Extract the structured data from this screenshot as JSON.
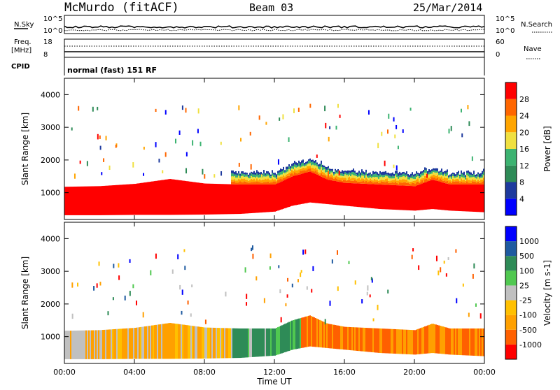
{
  "header": {
    "station": "McMurdo (fitACF)",
    "beam": "Beam 03",
    "date": "25/Mar/2014"
  },
  "strip_labels": {
    "nsky": "N.Sky",
    "nsky_top": "10^5",
    "nsky_bottom": "10^0",
    "nsearch": "N.Search",
    "nsearch_top": "10^5",
    "nsearch_bottom": "10^0",
    "freq_line1": "Freq.",
    "freq_line2": "[MHz]",
    "freq_top": "18",
    "freq_bottom": "8",
    "nave": "Nave",
    "nave_top": "60",
    "nave_bottom": "0",
    "cpid": "CPID",
    "cpid_value": "normal (fast) 151 RF"
  },
  "colors": {
    "power": [
      "#0000ff",
      "#1e3a9e",
      "#2e8b57",
      "#3cb371",
      "#f0e040",
      "#ffa500",
      "#ff6600",
      "#ff0000"
    ],
    "velocity": [
      "#ff0000",
      "#ff6000",
      "#ffa000",
      "#ffc000",
      "#c0c0c0",
      "#50c850",
      "#2e8b57",
      "#1e5aa0",
      "#0000ff"
    ]
  },
  "chart_data": [
    {
      "type": "heatmap",
      "title": "",
      "xlabel": "",
      "ylabel": "Slant Range [km]",
      "x_ticks": [
        "00:00",
        "04:00",
        "08:00",
        "12:00",
        "16:00",
        "20:00",
        "00:00"
      ],
      "y_ticks": [
        "1000",
        "2000",
        "3000",
        "4000"
      ],
      "xlim_hours": [
        0,
        24
      ],
      "ylim_km": [
        180,
        4500
      ],
      "colorbar_label": "Power [dB]",
      "colorbar_ticks": [
        "4",
        "8",
        "12",
        "16",
        "20",
        "24",
        "28"
      ],
      "colorbar_range": [
        0,
        32
      ],
      "scatter_band": [
        {
          "hour": 0,
          "lower_km": 310,
          "upper_km": 1180
        },
        {
          "hour": 2,
          "lower_km": 310,
          "upper_km": 1200
        },
        {
          "hour": 4,
          "lower_km": 320,
          "upper_km": 1270
        },
        {
          "hour": 6,
          "lower_km": 320,
          "upper_km": 1420
        },
        {
          "hour": 8,
          "lower_km": 330,
          "upper_km": 1280
        },
        {
          "hour": 10,
          "lower_km": 350,
          "upper_km": 1250
        },
        {
          "hour": 12,
          "lower_km": 420,
          "upper_km": 1250
        },
        {
          "hour": 13,
          "lower_km": 600,
          "upper_km": 1500
        },
        {
          "hour": 14,
          "lower_km": 700,
          "upper_km": 1650
        },
        {
          "hour": 15,
          "lower_km": 650,
          "upper_km": 1400
        },
        {
          "hour": 16,
          "lower_km": 600,
          "upper_km": 1300
        },
        {
          "hour": 18,
          "lower_km": 500,
          "upper_km": 1250
        },
        {
          "hour": 20,
          "lower_km": 450,
          "upper_km": 1200
        },
        {
          "hour": 21,
          "lower_km": 500,
          "upper_km": 1400
        },
        {
          "hour": 22,
          "lower_km": 450,
          "upper_km": 1250
        },
        {
          "hour": 24,
          "lower_km": 400,
          "upper_km": 1250
        }
      ]
    },
    {
      "type": "heatmap",
      "title": "",
      "xlabel": "Time UT",
      "ylabel": "Slant Range [km]",
      "x_ticks": [
        "00:00",
        "04:00",
        "08:00",
        "12:00",
        "16:00",
        "20:00",
        "00:00"
      ],
      "y_ticks": [
        "1000",
        "2000",
        "3000",
        "4000"
      ],
      "xlim_hours": [
        0,
        24
      ],
      "ylim_km": [
        180,
        4500
      ],
      "colorbar_label": "Velocity [m s-1]",
      "colorbar_ticks": [
        "-1000",
        "-500",
        "-100",
        "-25",
        "25",
        "100",
        "500",
        "1000"
      ],
      "velocity_regions": [
        {
          "from_hour": 0,
          "to_hour": 2.5,
          "dominant": "ground scatter (grey) with orange"
        },
        {
          "from_hour": 2.5,
          "to_hour": 9.5,
          "dominant": "orange -25 to -100 with grey"
        },
        {
          "from_hour": 9.5,
          "to_hour": 13.5,
          "dominant": "green 100 to 500"
        },
        {
          "from_hour": 13.5,
          "to_hour": 24,
          "dominant": "orange -100 to -500"
        }
      ]
    }
  ]
}
